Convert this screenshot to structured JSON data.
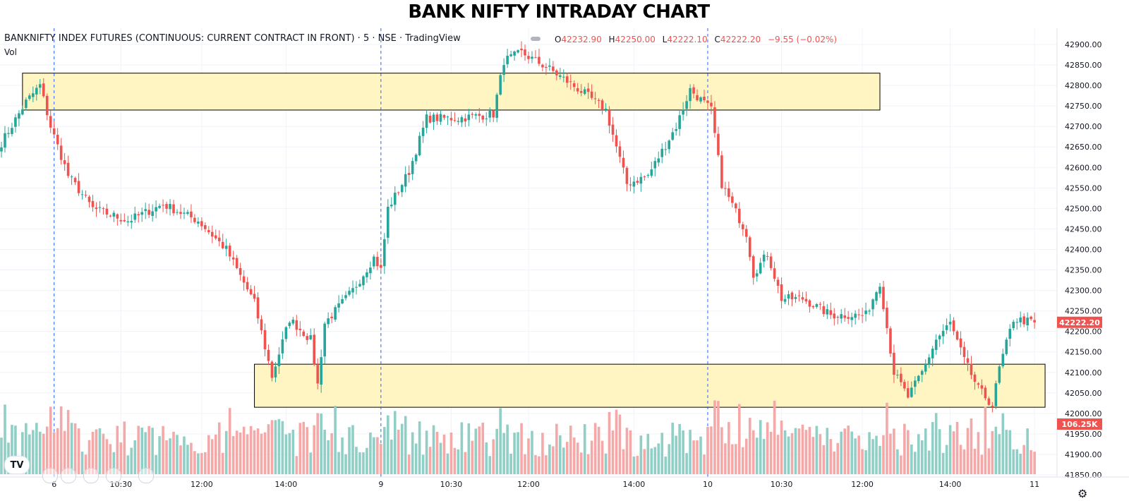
{
  "header": {
    "title": "BANK NIFTY INTRADAY CHART",
    "symbol": "BANKNIFTY INDEX FUTURES (CONTINUOUS: CURRENT CONTRACT IN FRONT) · 5 · NSE · TradingView",
    "volume_label": "Vol",
    "ohlc": {
      "open_key": "O",
      "open": "42232.90",
      "high_key": "H",
      "high": "42250.00",
      "low_key": "L",
      "low": "42222.10",
      "close_key": "C",
      "close": "42222.20",
      "change": "−9.55 (−0.02%)"
    },
    "logo_text": "TV"
  },
  "colors": {
    "up": "#26a69a",
    "down": "#ef5350",
    "vol_up": "#8fcfc6",
    "vol_down": "#f4a9a8",
    "zone_fill": "#fff5c2",
    "grid": "#f0f3fa",
    "session_line": "#2962ff"
  },
  "icons": [
    "tradingview-logo-icon",
    "settings-gear-icon"
  ],
  "chart_data": {
    "type": "candlestick",
    "interval": "5 min",
    "y_axis": {
      "ylim": [
        41825,
        42925
      ],
      "ticks": [
        "41850.00",
        "41900.00",
        "41950.00",
        "42000.00",
        "42050.00",
        "42100.00",
        "42150.00",
        "42200.00",
        "42250.00",
        "42300.00",
        "42350.00",
        "42400.00",
        "42450.00",
        "42500.00",
        "42550.00",
        "42600.00",
        "42650.00",
        "42700.00",
        "42750.00",
        "42800.00",
        "42850.00",
        "42900.00"
      ]
    },
    "x_axis": {
      "labels": [
        "6",
        "10:30",
        "12:00",
        "14:00",
        "9",
        "10:30",
        "12:00",
        "14:00",
        "10",
        "10:30",
        "12:00",
        "14:00",
        "11"
      ],
      "session_boundaries": [
        "6",
        "9",
        "10"
      ]
    },
    "price_label": "42222.20",
    "volume_label": "106.25K",
    "zones": [
      {
        "from_label": "6",
        "to": "12:00 (10)",
        "low": 42740,
        "high": 42830
      },
      {
        "from_label": "13:30 (6)",
        "to": "11",
        "low": 42015,
        "high": 42120
      }
    ],
    "anchors": [
      {
        "bar": 0,
        "close": 42660
      },
      {
        "bar": 7,
        "close": 42760
      },
      {
        "bar": 11,
        "close": 42800
      },
      {
        "bar": 14,
        "close": 42700
      },
      {
        "bar": 19,
        "close": 42580
      },
      {
        "bar": 26,
        "close": 42500
      },
      {
        "bar": 36,
        "close": 42470
      },
      {
        "bar": 46,
        "close": 42510
      },
      {
        "bar": 56,
        "close": 42470
      },
      {
        "bar": 64,
        "close": 42400
      },
      {
        "bar": 72,
        "close": 42270
      },
      {
        "bar": 77,
        "close": 42090
      },
      {
        "bar": 82,
        "close": 42230
      },
      {
        "bar": 88,
        "close": 42180
      },
      {
        "bar": 90,
        "close": 42070
      },
      {
        "bar": 92,
        "close": 42220
      },
      {
        "bar": 100,
        "close": 42300
      },
      {
        "bar": 106,
        "close": 42380
      },
      {
        "bar": 108,
        "close": 42350
      },
      {
        "bar": 110,
        "close": 42500
      },
      {
        "bar": 116,
        "close": 42590
      },
      {
        "bar": 121,
        "close": 42720
      },
      {
        "bar": 130,
        "close": 42720
      },
      {
        "bar": 140,
        "close": 42730
      },
      {
        "bar": 143,
        "close": 42860
      },
      {
        "bar": 148,
        "close": 42880
      },
      {
        "bar": 156,
        "close": 42840
      },
      {
        "bar": 166,
        "close": 42780
      },
      {
        "bar": 172,
        "close": 42740
      },
      {
        "bar": 178,
        "close": 42560
      },
      {
        "bar": 184,
        "close": 42580
      },
      {
        "bar": 192,
        "close": 42700
      },
      {
        "bar": 196,
        "close": 42790
      },
      {
        "bar": 202,
        "close": 42740
      },
      {
        "bar": 205,
        "close": 42560
      },
      {
        "bar": 212,
        "close": 42440
      },
      {
        "bar": 214,
        "close": 42340
      },
      {
        "bar": 218,
        "close": 42390
      },
      {
        "bar": 222,
        "close": 42280
      },
      {
        "bar": 228,
        "close": 42280
      },
      {
        "bar": 236,
        "close": 42240
      },
      {
        "bar": 246,
        "close": 42240
      },
      {
        "bar": 250,
        "close": 42320
      },
      {
        "bar": 254,
        "close": 42100
      },
      {
        "bar": 258,
        "close": 42040
      },
      {
        "bar": 262,
        "close": 42100
      },
      {
        "bar": 266,
        "close": 42180
      },
      {
        "bar": 270,
        "close": 42220
      },
      {
        "bar": 274,
        "close": 42130
      },
      {
        "bar": 278,
        "close": 42060
      },
      {
        "bar": 282,
        "close": 42020
      },
      {
        "bar": 284,
        "close": 42110
      },
      {
        "bar": 288,
        "close": 42230
      },
      {
        "bar": 294,
        "close": 42222
      }
    ]
  }
}
